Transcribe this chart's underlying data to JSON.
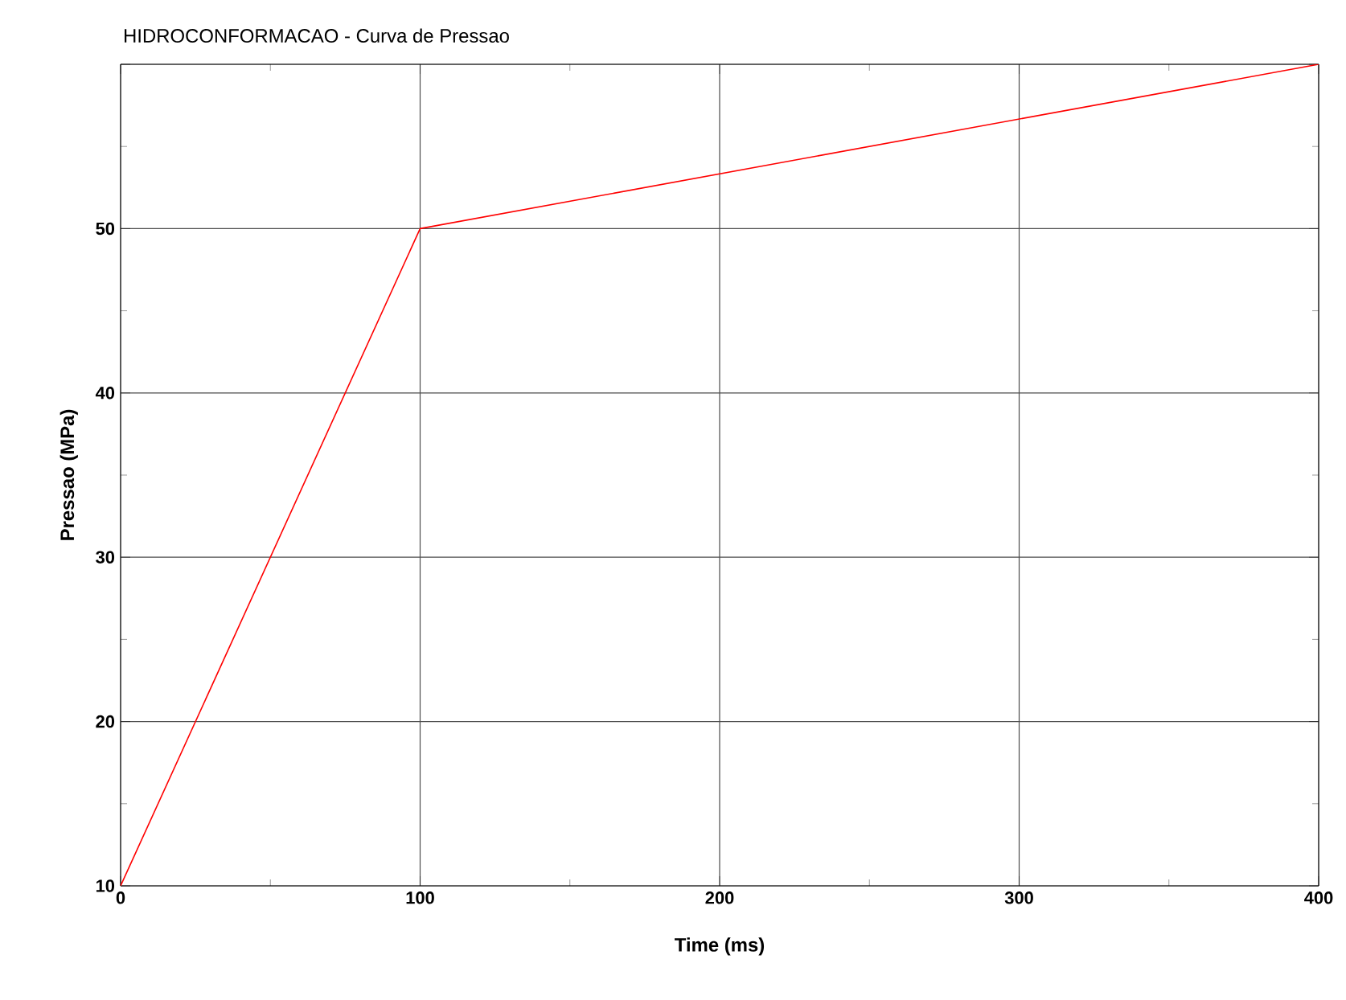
{
  "chart_data": {
    "type": "line",
    "title": "HIDROCONFORMACAO - Curva de Pressao",
    "xlabel": "Time (ms)",
    "ylabel": "Pressao (MPa)",
    "x": [
      0,
      100,
      400
    ],
    "series": [
      {
        "color": "#ff0000",
        "values": [
          10,
          50,
          60
        ]
      }
    ],
    "xlim": [
      0,
      400
    ],
    "ylim": [
      10,
      60
    ],
    "xticks": [
      0,
      100,
      200,
      300,
      400
    ],
    "yticks": [
      10,
      20,
      30,
      40,
      50,
      {
        "value": 60,
        "label": null
      }
    ],
    "grid": true,
    "marker": "none",
    "line_style": "solid"
  }
}
